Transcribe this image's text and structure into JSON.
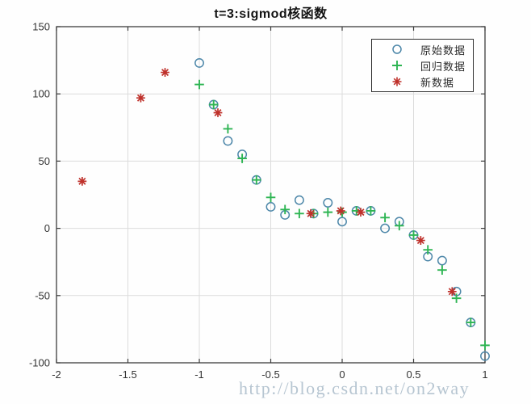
{
  "title": "t=3:sigmod核函数",
  "watermark": "http://blog.csdn.net/on2way",
  "colors": {
    "original": "#4d87a9",
    "regression": "#2eb553",
    "new": "#bf312b",
    "grid": "#dcdcdc",
    "axis": "#3c3c3c",
    "watermark": "#b6c5d1"
  },
  "legend": {
    "items": [
      {
        "label": "原始数据",
        "marker": "circle",
        "color": "#4d87a9"
      },
      {
        "label": "回归数据",
        "marker": "plus",
        "color": "#2eb553"
      },
      {
        "label": "新数据",
        "marker": "asterisk",
        "color": "#bf312b"
      }
    ]
  },
  "chart_data": {
    "type": "scatter",
    "title": "t=3:sigmod核函数",
    "xlabel": "",
    "ylabel": "",
    "xlim": [
      -2,
      1
    ],
    "ylim": [
      -100,
      150
    ],
    "xticks": [
      -2,
      -1.5,
      -1,
      -0.5,
      0,
      0.5,
      1
    ],
    "yticks": [
      -100,
      -50,
      0,
      50,
      100,
      150
    ],
    "grid": true,
    "legend_position": "top-right",
    "style": {
      "grid_color": "#dcdcdc",
      "axis_color": "#3c3c3c"
    },
    "series": [
      {
        "name": "原始数据",
        "marker": "circle",
        "color": "#4d87a9",
        "points": [
          [
            -1,
            123
          ],
          [
            -0.9,
            92
          ],
          [
            -0.8,
            65
          ],
          [
            -0.7,
            55
          ],
          [
            -0.6,
            36
          ],
          [
            -0.5,
            16
          ],
          [
            -0.4,
            10
          ],
          [
            -0.3,
            21
          ],
          [
            -0.2,
            11
          ],
          [
            -0.1,
            19
          ],
          [
            0,
            5
          ],
          [
            0.1,
            13
          ],
          [
            0.2,
            13
          ],
          [
            0.3,
            0
          ],
          [
            0.4,
            5
          ],
          [
            0.5,
            -5
          ],
          [
            0.6,
            -21
          ],
          [
            0.7,
            -24
          ],
          [
            0.8,
            -47
          ],
          [
            0.9,
            -70
          ],
          [
            1,
            -95
          ]
        ]
      },
      {
        "name": "回归数据",
        "marker": "plus",
        "color": "#2eb553",
        "points": [
          [
            -1,
            107
          ],
          [
            -0.9,
            92
          ],
          [
            -0.8,
            74
          ],
          [
            -0.7,
            52
          ],
          [
            -0.6,
            36
          ],
          [
            -0.5,
            23
          ],
          [
            -0.4,
            14
          ],
          [
            -0.3,
            11
          ],
          [
            -0.2,
            11
          ],
          [
            -0.1,
            12
          ],
          [
            0,
            12
          ],
          [
            0.1,
            13
          ],
          [
            0.2,
            13
          ],
          [
            0.3,
            8
          ],
          [
            0.4,
            2
          ],
          [
            0.5,
            -5
          ],
          [
            0.6,
            -16
          ],
          [
            0.7,
            -31
          ],
          [
            0.8,
            -52
          ],
          [
            0.9,
            -70
          ],
          [
            1,
            -87
          ]
        ]
      },
      {
        "name": "新数据",
        "marker": "asterisk",
        "color": "#bf312b",
        "points": [
          [
            -1.82,
            35
          ],
          [
            -1.41,
            97
          ],
          [
            -1.24,
            116
          ],
          [
            -0.87,
            86
          ],
          [
            -0.22,
            11
          ],
          [
            -0.01,
            13
          ],
          [
            0.13,
            12
          ],
          [
            0.55,
            -9
          ],
          [
            0.77,
            -47
          ]
        ]
      }
    ]
  }
}
